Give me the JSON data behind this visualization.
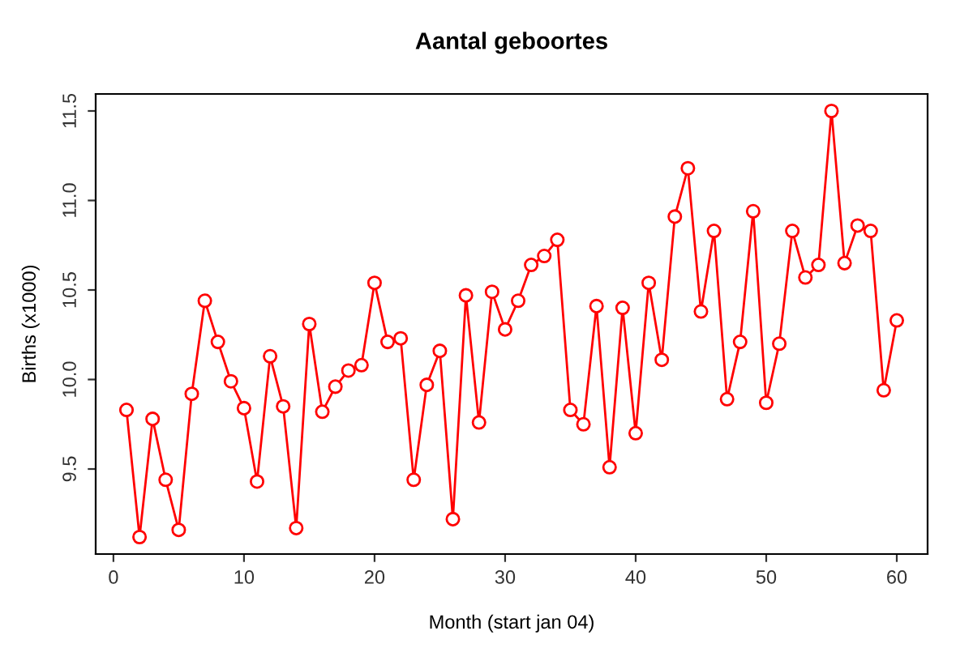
{
  "chart_data": {
    "type": "line",
    "title": "Aantal geboortes",
    "xlabel": "Month (start jan 04)",
    "ylabel": "Births (x1000)",
    "x": [
      1,
      2,
      3,
      4,
      5,
      6,
      7,
      8,
      9,
      10,
      11,
      12,
      13,
      14,
      15,
      16,
      17,
      18,
      19,
      20,
      21,
      22,
      23,
      24,
      25,
      26,
      27,
      28,
      29,
      30,
      31,
      32,
      33,
      34,
      35,
      36,
      37,
      38,
      39,
      40,
      41,
      42,
      43,
      44,
      45,
      46,
      47,
      48,
      49,
      50,
      51,
      52,
      53,
      54,
      55,
      56,
      57,
      58,
      59,
      60
    ],
    "series": [
      {
        "color": "#ff0000",
        "values": [
          9.83,
          9.12,
          9.78,
          9.44,
          9.16,
          9.92,
          10.44,
          10.21,
          9.99,
          9.84,
          9.43,
          10.13,
          9.85,
          9.17,
          10.31,
          9.82,
          9.96,
          10.05,
          10.08,
          10.54,
          10.21,
          10.23,
          9.44,
          9.97,
          10.16,
          9.22,
          10.47,
          9.76,
          10.49,
          10.28,
          10.44,
          10.64,
          10.69,
          10.78,
          9.83,
          9.75,
          10.41,
          9.51,
          10.4,
          9.7,
          10.54,
          10.11,
          10.91,
          11.18,
          10.38,
          10.83,
          9.89,
          10.21,
          10.94,
          9.87,
          10.2,
          10.83,
          10.57,
          10.64,
          11.5,
          10.65,
          10.86,
          10.83,
          9.94,
          10.33
        ]
      }
    ],
    "xlim": [
      -1.36,
      62.36
    ],
    "ylim": [
      9.025,
      11.595
    ],
    "xticks": [
      0,
      10,
      20,
      30,
      40,
      50,
      60
    ],
    "yticks": [
      9.5,
      {
        "value": 10,
        "label": "10.0"
      },
      10.5,
      {
        "value": 11,
        "label": "11.0"
      },
      11.5
    ],
    "marker": "circle",
    "line_style": "solid",
    "grid": false,
    "legend": false
  }
}
